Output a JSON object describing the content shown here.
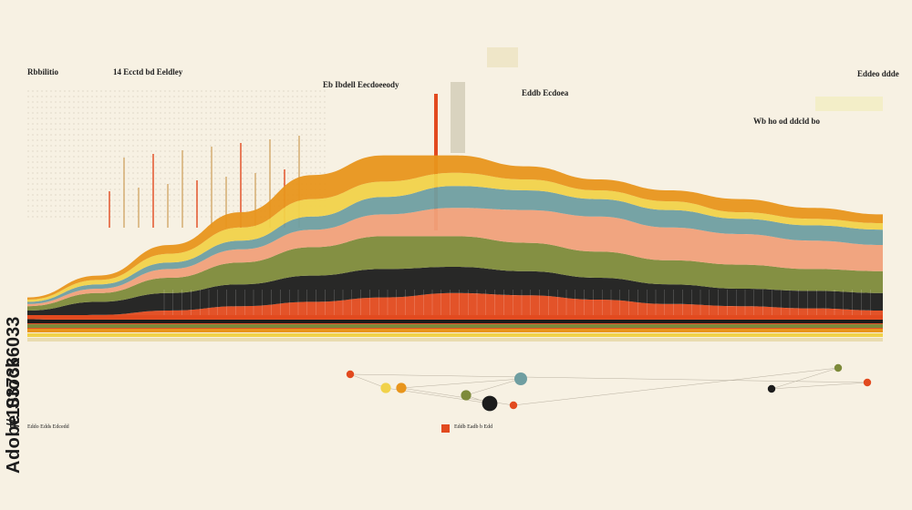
{
  "watermark": {
    "brand": "Adobe Stock",
    "asset_id": "#1037366033"
  },
  "labels": {
    "top_left": "Rbbilitio",
    "top_left_2": "14 Ecctd bd Eeldley",
    "top_center": "Eb Ibdell Eecdoeeody",
    "mid_note": "Eddb Ecdoea",
    "right_note": "Wb ho od ddcld bo",
    "right_top": "Eddeo ddde",
    "bottom_left": "Eddo Edds Edcedd",
    "bottom_center": "Eddb Eadb b Edd"
  },
  "colors": {
    "background": "#f7f1e3",
    "orange": "#e8951c",
    "red": "#e24a1f",
    "black": "#1c1c1c",
    "olive": "#7d8a3a",
    "teal": "#6f9ea1",
    "yellow": "#f1d24a",
    "salmon": "#f0a07a",
    "cream": "#e9dcb0",
    "grey": "#8b8b84"
  },
  "chart_data": {
    "type": "area",
    "title": "",
    "xlabel": "",
    "ylabel": "",
    "x": [
      0,
      1,
      2,
      3,
      4,
      5,
      6,
      7,
      8,
      9,
      10,
      11,
      12
    ],
    "ylim": [
      0,
      100
    ],
    "grid": false,
    "legend": "none",
    "series": [
      {
        "color": "#e24a1f",
        "values": [
          6,
          8,
          10,
          12,
          14,
          16,
          18,
          17,
          15,
          13,
          12,
          11,
          10
        ]
      },
      {
        "color": "#1c1c1c",
        "values": [
          4,
          6,
          8,
          10,
          12,
          13,
          12,
          11,
          10,
          9,
          8,
          8,
          8
        ]
      },
      {
        "color": "#7d8a3a",
        "values": [
          2,
          4,
          7,
          10,
          13,
          15,
          14,
          13,
          12,
          11,
          11,
          10,
          10
        ]
      },
      {
        "color": "#f0a07a",
        "values": [
          1,
          2,
          4,
          6,
          8,
          10,
          13,
          15,
          16,
          15,
          14,
          13,
          12
        ]
      },
      {
        "color": "#6f9ea1",
        "values": [
          1,
          2,
          3,
          4,
          6,
          8,
          10,
          9,
          8,
          8,
          7,
          7,
          7
        ]
      },
      {
        "color": "#f1d24a",
        "values": [
          1,
          2,
          4,
          6,
          8,
          7,
          6,
          5,
          4,
          4,
          3,
          3,
          3
        ]
      },
      {
        "color": "#e8951c",
        "values": [
          1,
          2,
          4,
          7,
          11,
          12,
          8,
          6,
          5,
          5,
          6,
          5,
          4
        ]
      }
    ],
    "bubbles": [
      {
        "color": "#e24a1f",
        "value": 3
      },
      {
        "color": "#f1d24a",
        "value": 4
      },
      {
        "color": "#1c1c1c",
        "value": 6
      },
      {
        "color": "#7d8a3a",
        "value": 4
      },
      {
        "color": "#6f9ea1",
        "value": 5
      },
      {
        "color": "#e8951c",
        "value": 4
      },
      {
        "color": "#e24a1f",
        "value": 3
      },
      {
        "color": "#7d8a3a",
        "value": 3
      },
      {
        "color": "#1c1c1c",
        "value": 3
      },
      {
        "color": "#e24a1f",
        "value": 3
      }
    ]
  }
}
